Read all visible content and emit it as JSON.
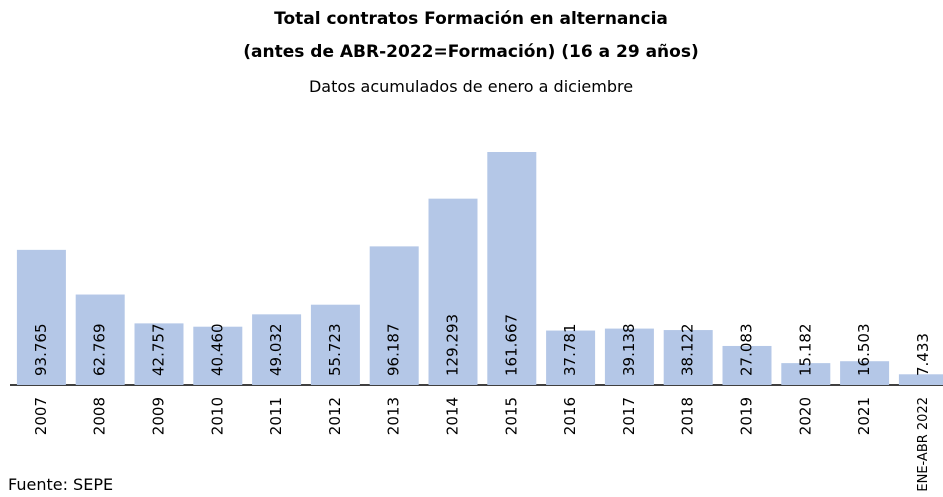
{
  "chart_data": {
    "type": "bar",
    "title": [
      "Total contratos Formación en alternancia",
      "(antes de ABR-2022=Formación) (16 a 29 años)"
    ],
    "subtitle": "Datos acumulados de enero a diciembre",
    "categories": [
      "2007",
      "2008",
      "2009",
      "2010",
      "2011",
      "2012",
      "2013",
      "2014",
      "2015",
      "2016",
      "2017",
      "2018",
      "2019",
      "2020",
      "2021",
      "ENE-ABR 2022"
    ],
    "values": [
      93765,
      62769,
      42757,
      40460,
      49032,
      55723,
      96187,
      129293,
      161667,
      37781,
      39138,
      38122,
      27083,
      15182,
      16503,
      7433
    ],
    "value_labels": [
      "93.765",
      "62.769",
      "42.757",
      "40.460",
      "49.032",
      "55.723",
      "96.187",
      "129.293",
      "161.667",
      "37.781",
      "39.138",
      "38.122",
      "27.083",
      "15.182",
      "16.503",
      "7.433"
    ],
    "color": "#b4c7e7",
    "source": "Fuente: SEPE"
  }
}
